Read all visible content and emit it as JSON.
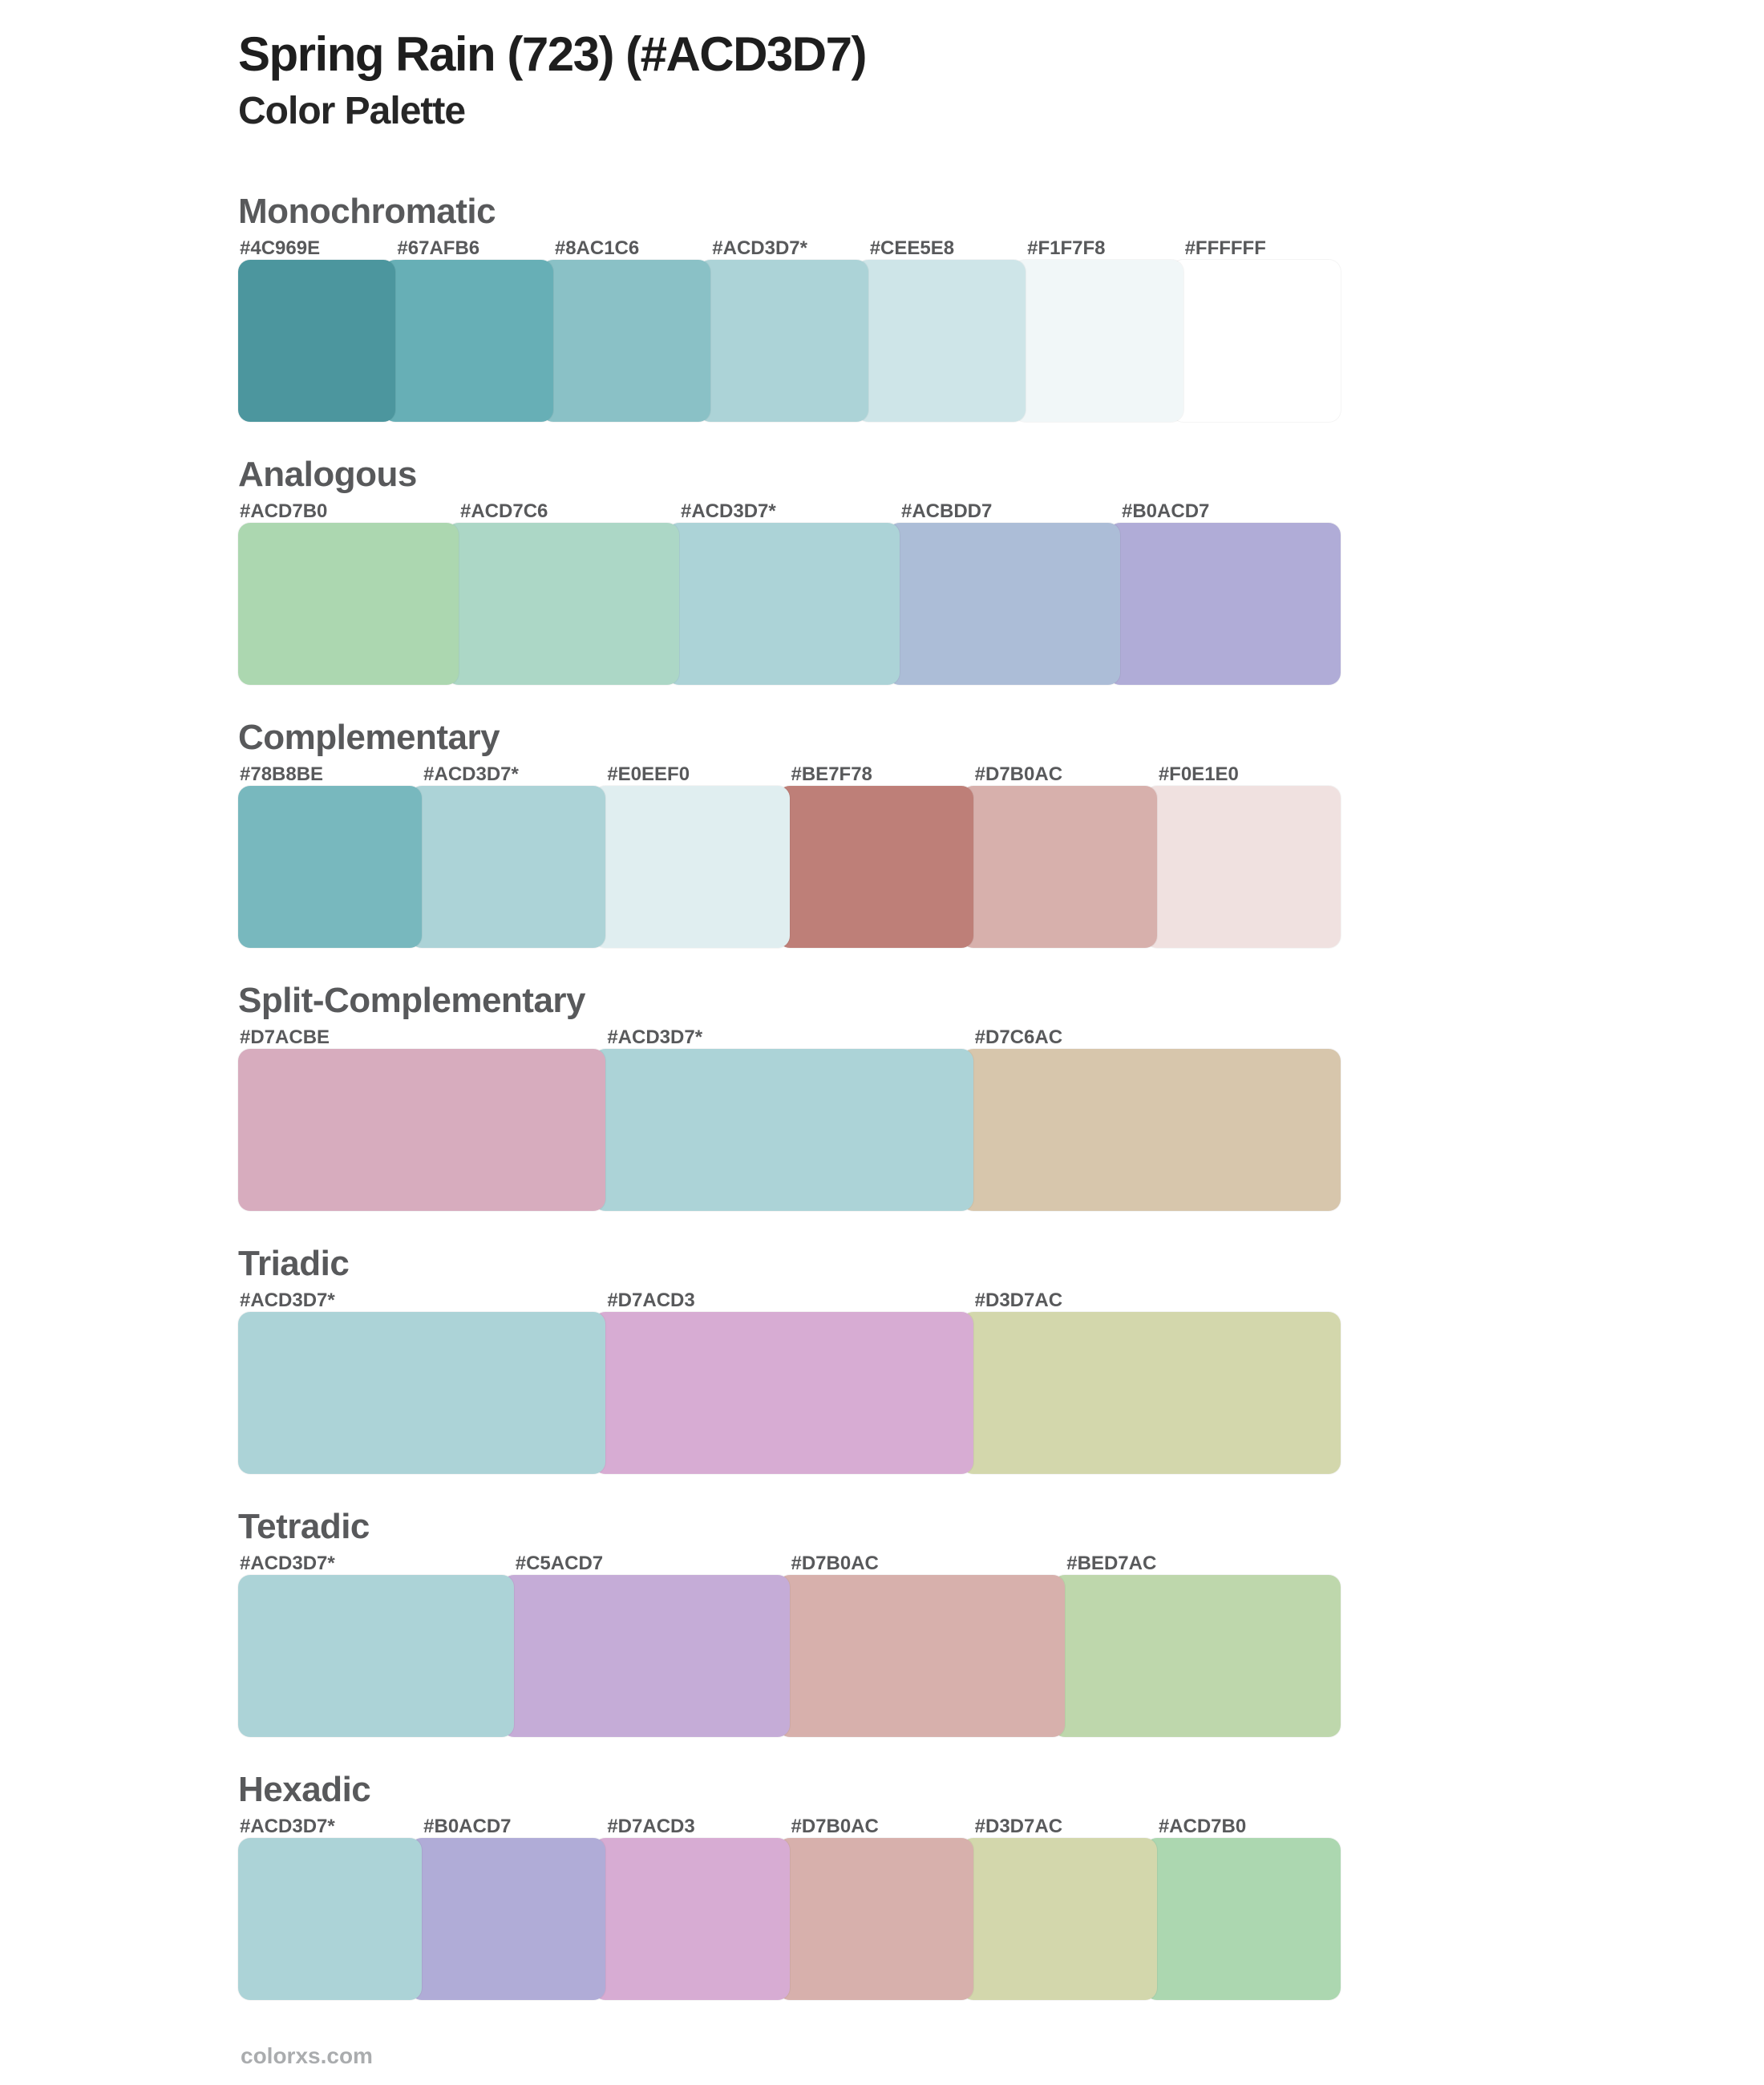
{
  "page": {
    "title": "Spring Rain (723) (#ACD3D7)",
    "subtitle": "Color Palette",
    "footer": "colorxs.com"
  },
  "base_color": "#ACD3D7",
  "colors": {
    "title_text": "#1E1E1E",
    "section_heading_text": "#58595B",
    "swatch_label_text": "#58595B",
    "footer_text": "#AAACAE",
    "background": "#FFFFFF"
  },
  "sections": [
    {
      "name": "Monochromatic",
      "swatches": [
        {
          "label": "#4C969E",
          "color": "#4C969E"
        },
        {
          "label": "#67AFB6",
          "color": "#67AFB6"
        },
        {
          "label": "#8AC1C6",
          "color": "#8AC1C6"
        },
        {
          "label": "#ACD3D7*",
          "color": "#ACD3D7"
        },
        {
          "label": "#CEE5E8",
          "color": "#CEE5E8"
        },
        {
          "label": "#F1F7F8",
          "color": "#F1F7F8"
        },
        {
          "label": "#FFFFFF",
          "color": "#FFFFFF"
        }
      ]
    },
    {
      "name": "Analogous",
      "swatches": [
        {
          "label": "#ACD7B0",
          "color": "#ACD7B0"
        },
        {
          "label": "#ACD7C6",
          "color": "#ACD7C6"
        },
        {
          "label": "#ACD3D7*",
          "color": "#ACD3D7"
        },
        {
          "label": "#ACBDD7",
          "color": "#ACBDD7"
        },
        {
          "label": "#B0ACD7",
          "color": "#B0ACD7"
        }
      ]
    },
    {
      "name": "Complementary",
      "swatches": [
        {
          "label": "#78B8BE",
          "color": "#78B8BE"
        },
        {
          "label": "#ACD3D7*",
          "color": "#ACD3D7"
        },
        {
          "label": "#E0EEF0",
          "color": "#E0EEF0"
        },
        {
          "label": "#BE7F78",
          "color": "#BE7F78"
        },
        {
          "label": "#D7B0AC",
          "color": "#D7B0AC"
        },
        {
          "label": "#F0E1E0",
          "color": "#F0E1E0"
        }
      ]
    },
    {
      "name": "Split-Complementary",
      "swatches": [
        {
          "label": "#D7ACBE",
          "color": "#D7ACBE"
        },
        {
          "label": "#ACD3D7*",
          "color": "#ACD3D7"
        },
        {
          "label": "#D7C6AC",
          "color": "#D7C6AC"
        }
      ]
    },
    {
      "name": "Triadic",
      "swatches": [
        {
          "label": "#ACD3D7*",
          "color": "#ACD3D7"
        },
        {
          "label": "#D7ACD3",
          "color": "#D7ACD3"
        },
        {
          "label": "#D3D7AC",
          "color": "#D3D7AC"
        }
      ]
    },
    {
      "name": "Tetradic",
      "swatches": [
        {
          "label": "#ACD3D7*",
          "color": "#ACD3D7"
        },
        {
          "label": "#C5ACD7",
          "color": "#C5ACD7"
        },
        {
          "label": "#D7B0AC",
          "color": "#D7B0AC"
        },
        {
          "label": "#BED7AC",
          "color": "#BED7AC"
        }
      ]
    },
    {
      "name": "Hexadic",
      "swatches": [
        {
          "label": "#ACD3D7*",
          "color": "#ACD3D7"
        },
        {
          "label": "#B0ACD7",
          "color": "#B0ACD7"
        },
        {
          "label": "#D7ACD3",
          "color": "#D7ACD3"
        },
        {
          "label": "#D7B0AC",
          "color": "#D7B0AC"
        },
        {
          "label": "#D3D7AC",
          "color": "#D3D7AC"
        },
        {
          "label": "#ACD7B0",
          "color": "#ACD7B0"
        }
      ]
    }
  ]
}
